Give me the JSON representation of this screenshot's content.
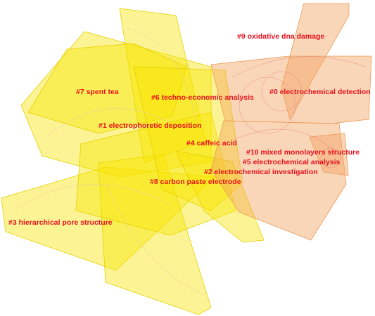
{
  "clusters": [
    "#9 oxidative dna damage",
    "#0 electrochemical detection",
    "#6 techno-economic analysis",
    "#7 spent tea",
    "#1 electrophoretic deposition",
    "#4 caffeic acid",
    "#10 mixed monolayers structure",
    "#5 electrochemical analysis",
    "#2 electrochemical investigation",
    "#8 carbon paste electrode",
    "#3 hierarchical pore structure"
  ]
}
